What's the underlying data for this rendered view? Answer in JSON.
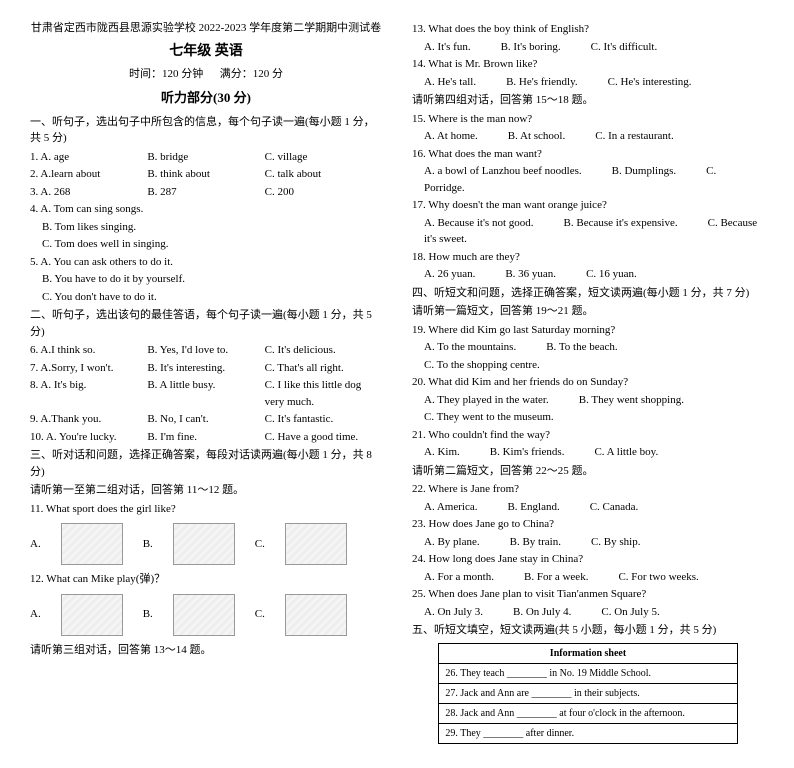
{
  "header": {
    "school_line": "甘肃省定西市陇西县思源实验学校 2022-2023 学年度第二学期期中测试卷",
    "grade": "七年级",
    "subject": "英语",
    "time_label": "时间：120 分钟",
    "score_label": "满分：120 分",
    "listening_title": "听力部分(30 分)"
  },
  "sec1": {
    "title": "一、听句子，选出句子中所包含的信息，每个句子读一遍(每小题 1 分，共 5 分)",
    "q1": {
      "n": "1.",
      "a": "A. age",
      "b": "B. bridge",
      "c": "C. village"
    },
    "q2": {
      "n": "2.",
      "a": "A.learn about",
      "b": "B. think about",
      "c": "C. talk about"
    },
    "q3": {
      "n": "3.",
      "a": "A. 268",
      "b": "B. 287",
      "c": "C. 200"
    },
    "q4": {
      "n": "4.",
      "a": "A. Tom can sing songs.",
      "b": "B. Tom likes singing.",
      "c": "C. Tom does well in singing."
    },
    "q5": {
      "n": "5.",
      "a": "A. You can ask others to do it.",
      "b": "B. You have to do it by yourself.",
      "c": "C. You don't have to do it."
    }
  },
  "sec2": {
    "title": "二、听句子，选出该句的最佳答语，每个句子读一遍(每小题 1 分，共 5 分)",
    "q6": {
      "n": "6.",
      "a": "A.I think so.",
      "b": "B. Yes, I'd love to.",
      "c": "C. It's delicious."
    },
    "q7": {
      "n": "7.",
      "a": "A.Sorry, I won't.",
      "b": "B. It's interesting.",
      "c": "C. That's all right."
    },
    "q8": {
      "n": "8.",
      "a": "A. It's big.",
      "b": "B. A little busy.",
      "c": "C. I like this little dog very much."
    },
    "q9": {
      "n": "9.",
      "a": "A.Thank you.",
      "b": "B. No, I can't.",
      "c": "C. It's fantastic."
    },
    "q10": {
      "n": "10.",
      "a": "A. You're lucky.",
      "b": "B. I'm fine.",
      "c": "C. Have a good time."
    }
  },
  "sec3": {
    "title": "三、听对话和问题，选择正确答案，每段对话读两遍(每小题 1 分，共 8 分)",
    "sub1": "请听第一至第二组对话，回答第 11～12 题。",
    "q11": "11. What sport does the girl like?",
    "labels11": {
      "a": "A.",
      "b": "B.",
      "c": "C."
    },
    "q12": "12. What can Mike play(弹)？",
    "labels12": {
      "a": "A.",
      "b": "B.",
      "c": "C."
    },
    "sub2": "请听第三组对话，回答第 13～14 题。"
  },
  "col2": {
    "q13": {
      "t": "13. What does the boy think of English?",
      "a": "A. It's fun.",
      "b": "B. It's boring.",
      "c": "C. It's difficult."
    },
    "q14": {
      "t": "14. What is Mr. Brown like?",
      "a": "A. He's tall.",
      "b": "B. He's friendly.",
      "c": "C. He's interesting."
    },
    "sub3": "请听第四组对话，回答第 15～18 题。",
    "q15": {
      "t": "15. Where is the man now?",
      "a": "A. At home.",
      "b": "B. At school.",
      "c": "C. In a restaurant."
    },
    "q16": {
      "t": "16. What does the man want?",
      "a": "A. a bowl of Lanzhou beef noodles.",
      "b": "B. Dumplings.",
      "c": "C. Porridge."
    },
    "q17": {
      "t": "17. Why doesn't the man want orange juice?",
      "a": "A. Because it's not good.",
      "b": "B. Because it's expensive.",
      "c": "C. Because it's sweet."
    },
    "q18": {
      "t": "18. How much are they?",
      "a": "A. 26 yuan.",
      "b": "B. 36 yuan.",
      "c": "C. 16 yuan."
    }
  },
  "sec4": {
    "title": "四、听短文和问题，选择正确答案，短文读两遍(每小题 1 分，共 7 分)",
    "sub1": "请听第一篇短文，回答第 19～21 题。",
    "q19": {
      "t": "19. Where did Kim go last Saturday morning?",
      "a": "A. To the mountains.",
      "b": "B. To the beach.",
      "c": "C. To the shopping centre."
    },
    "q20": {
      "t": "20. What did Kim and her friends do on Sunday?",
      "a": "A. They played in the water.",
      "b": "B. They went shopping.",
      "c": "C. They went to the museum."
    },
    "q21": {
      "t": "21. Who couldn't find the way?",
      "a": "A. Kim.",
      "b": "B. Kim's friends.",
      "c": "C. A little boy."
    },
    "sub2": "请听第二篇短文，回答第 22～25 题。",
    "q22": {
      "t": "22. Where is Jane from?",
      "a": "A. America.",
      "b": "B. England.",
      "c": "C. Canada."
    },
    "q23": {
      "t": "23. How does Jane go to China?",
      "a": "A. By plane.",
      "b": "B. By train.",
      "c": "C. By ship."
    },
    "q24": {
      "t": "24. How long does Jane stay in China?",
      "a": "A. For a month.",
      "b": "B. For a week.",
      "c": "C. For two weeks."
    },
    "q25": {
      "t": "25. When does Jane plan to visit Tian'anmen Square?",
      "a": "A. On July 3.",
      "b": "B. On July 4.",
      "c": "C. On July 5."
    }
  },
  "sec5": {
    "title": "五、听短文填空，短文读两遍(共 5 小题，每小题 1 分，共 5 分)",
    "table_header": "Information sheet",
    "r26": "26. They teach ________ in No. 19 Middle School.",
    "r27": "27. Jack and Ann are ________ in their subjects.",
    "r28": "28. Jack and Ann ________ at four o'clock in the afternoon.",
    "r29": "29. They ________ after dinner."
  }
}
